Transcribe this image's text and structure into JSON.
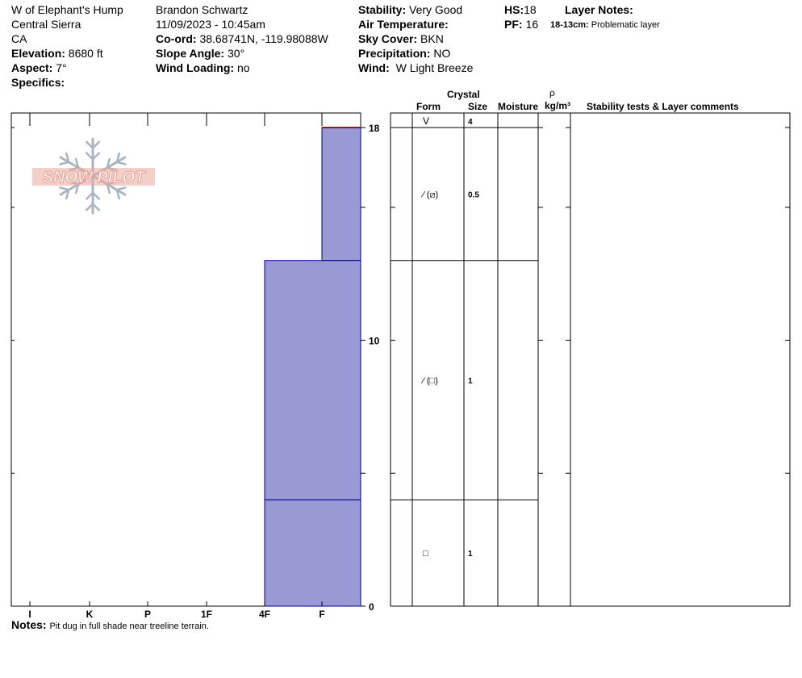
{
  "header": {
    "location": "W of Elephant's Hump",
    "range": "Central Sierra",
    "state": "CA",
    "elevation_label": "Elevation:",
    "elevation_value": "8680 ft",
    "aspect_label": "Aspect:",
    "aspect_value": "7°",
    "specifics_label": "Specifics:",
    "observer": "Brandon Schwartz",
    "datetime": "11/09/2023 - 10:45am",
    "coord_label": "Co-ord:",
    "coord_value": "38.68741N, -119.98088W",
    "slope_label": "Slope Angle:",
    "slope_value": "30°",
    "wind_loading_label": "Wind Loading:",
    "wind_loading_value": "no",
    "stability_label": "Stability:",
    "stability_value": "Very Good",
    "air_temp_label": "Air Temperature:",
    "sky_label": "Sky Cover:",
    "sky_value": "BKN",
    "precip_label": "Precipitation:",
    "precip_value": "NO",
    "wind_label": "Wind:",
    "wind_value": "W Light Breeze",
    "hs_label": "HS:",
    "hs_value": "18",
    "pf_label": "PF:",
    "pf_value": "16",
    "layer_notes_label": "Layer Notes:",
    "layer_note_range": "18-13cm:",
    "layer_note_text": "Problematic layer"
  },
  "logo_text": "SNOW PILOT",
  "notes_label": "Notes:",
  "notes_text": "Pit dug in full shade near treeline terrain.",
  "table_headers": {
    "crystal": "Crystal",
    "form": "Form",
    "size": "Size",
    "moisture": "Moisture",
    "rho": "ρ",
    "density_unit": "kg/m³",
    "stability_comments": "Stability tests & Layer comments"
  },
  "colors": {
    "layer_fill": "#9999d6",
    "layer_stroke": "#00008b",
    "surface_line": "#8b1a1a",
    "logo_red": "#e8a79a",
    "logo_blue": "#a7b4c2"
  },
  "chart_data": {
    "type": "snow-profile",
    "y_axis": {
      "min": 0,
      "max": 18,
      "tick_labels": [
        "0",
        "10",
        "18"
      ],
      "minor_ticks": [
        5,
        15
      ]
    },
    "hardness_scale": [
      "I",
      "K",
      "P",
      "1F",
      "4F",
      "F"
    ],
    "hardness_scale_points": [
      1,
      2,
      3,
      4,
      5,
      6
    ],
    "layers": [
      {
        "bottom": 13,
        "top": 18,
        "hardness": "F",
        "form": "⁄ (⧄)",
        "size": "0.5"
      },
      {
        "bottom": 4,
        "top": 13,
        "hardness": "4F",
        "form": "⁄ (□)",
        "size": "1"
      },
      {
        "bottom": 0,
        "top": 4,
        "hardness": "4F",
        "form": "□",
        "size": "1"
      }
    ],
    "surface_row": {
      "form": "V",
      "size": "4"
    }
  }
}
